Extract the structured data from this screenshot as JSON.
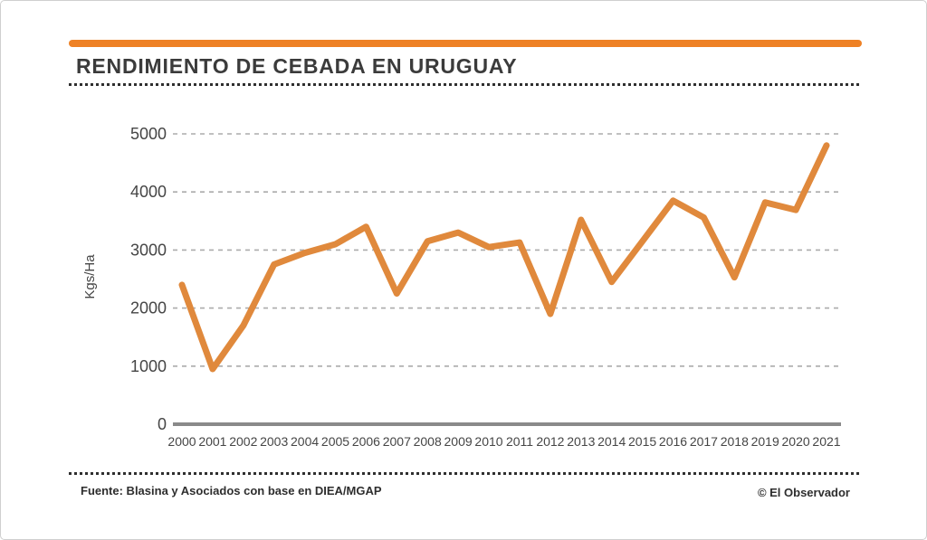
{
  "header": {
    "title": "RENDIMIENTO DE CEBADA EN URUGUAY"
  },
  "footer": {
    "source": "Fuente: Blasina y Asociados con base en DIEA/MGAP",
    "credit": "© El Observador"
  },
  "colors": {
    "accent_bar": "#ee8125",
    "line": "#e0893c",
    "title_text": "#3b3b3b",
    "axis_text": "#454545",
    "gridline": "#ababab",
    "axis_line": "#8a8a8a"
  },
  "chart_data": {
    "type": "line",
    "title": "RENDIMIENTO DE CEBADA EN URUGUAY",
    "xlabel": "",
    "ylabel": "Kgs/Ha",
    "categories": [
      "2000",
      "2001",
      "2002",
      "2003",
      "2004",
      "2005",
      "2006",
      "2007",
      "2008",
      "2009",
      "2010",
      "2011",
      "2012",
      "2013",
      "2014",
      "2015",
      "2016",
      "2017",
      "2018",
      "2019",
      "2020",
      "2021"
    ],
    "values": [
      2400,
      950,
      1700,
      2750,
      2950,
      3100,
      3400,
      2250,
      3150,
      3300,
      3050,
      3130,
      1900,
      3520,
      2450,
      3150,
      3850,
      3560,
      2530,
      3820,
      3690,
      4800
    ],
    "ylim": [
      0,
      5000
    ],
    "yticks": [
      0,
      1000,
      2000,
      3000,
      4000,
      5000
    ],
    "grid": "horizontal-dashed",
    "legend": "none"
  }
}
